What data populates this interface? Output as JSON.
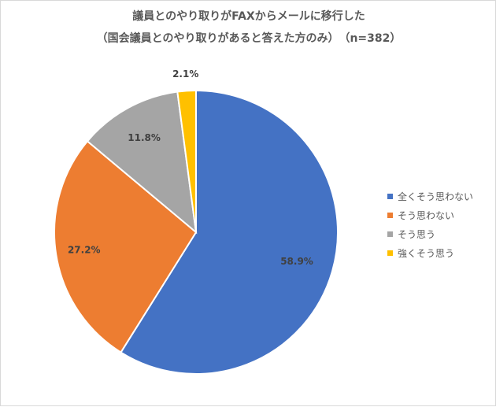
{
  "chart_data": {
    "type": "pie",
    "title": "議員とのやり取りがFAXからメールに移行した",
    "subtitle": "（国会議員とのやり取りがあると答えた方のみ）　（n=382）",
    "slices": [
      {
        "label": "全くそう思わない",
        "value": 58.9,
        "display": "58.9%",
        "color": "#4472C4"
      },
      {
        "label": "そう思わない",
        "value": 27.2,
        "display": "27.2%",
        "color": "#ED7D31"
      },
      {
        "label": "そう思う",
        "value": 11.8,
        "display": "11.8%",
        "color": "#A5A5A5"
      },
      {
        "label": "強くそう思う",
        "value": 2.1,
        "display": "2.1%",
        "color": "#FFC000"
      }
    ],
    "legend_position": "right",
    "start_angle_deg": 0,
    "direction": "clockwise"
  }
}
